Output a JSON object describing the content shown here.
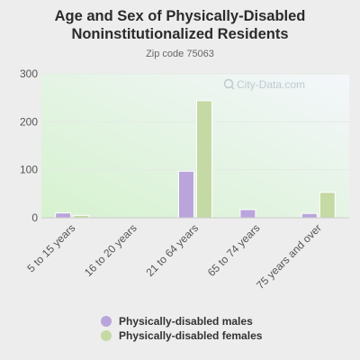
{
  "title": "Age and Sex of Physically-Disabled Noninstitutionalized Residents",
  "subtitle": "Zip code 75063",
  "watermark": "City-Data.com",
  "chart_data": {
    "type": "bar",
    "categories": [
      "5 to 15 years",
      "16 to 20 years",
      "21 to 64 years",
      "65 to 74 years",
      "75 years and over"
    ],
    "series": [
      {
        "name": "Physically-disabled males",
        "values": [
          10,
          0,
          97,
          17,
          9
        ],
        "color": "#b9a5dc"
      },
      {
        "name": "Physically-disabled females",
        "values": [
          5,
          0,
          244,
          0,
          53
        ],
        "color": "#c5d9a5"
      }
    ],
    "yticks": [
      0,
      100,
      200,
      300
    ],
    "ylim": [
      0,
      300
    ],
    "legend_position": "bottom"
  }
}
